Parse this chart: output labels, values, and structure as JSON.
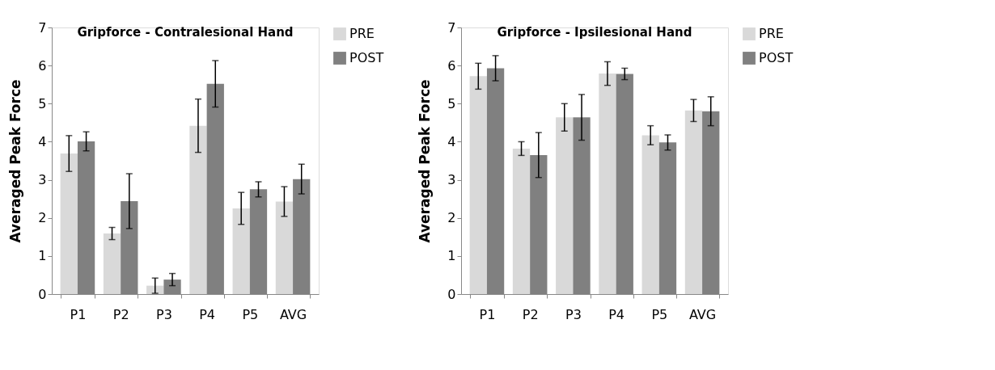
{
  "chart_data": [
    {
      "type": "bar",
      "title": "Gripforce - Contralesional Hand",
      "ylabel": "Averaged Peak Force",
      "categories": [
        "P1",
        "P2",
        "P3",
        "P4",
        "P5",
        "AVG"
      ],
      "ylim": [
        0,
        7
      ],
      "yticks": [
        0,
        1,
        2,
        3,
        4,
        5,
        6,
        7
      ],
      "grid": false,
      "legend": "right",
      "series": [
        {
          "name": "PRE",
          "color": "#d9d9d9",
          "values": [
            3.69,
            1.59,
            0.22,
            4.42,
            2.25,
            2.43
          ],
          "errors": [
            0.47,
            0.16,
            0.2,
            0.7,
            0.42,
            0.39
          ]
        },
        {
          "name": "POST",
          "color": "#808080",
          "values": [
            4.01,
            2.44,
            0.38,
            5.52,
            2.75,
            3.02
          ],
          "errors": [
            0.25,
            0.72,
            0.16,
            0.61,
            0.2,
            0.39
          ]
        }
      ]
    },
    {
      "type": "bar",
      "title": "Gripforce - Ipsilesional Hand",
      "ylabel": "Averaged Peak Force",
      "categories": [
        "P1",
        "P2",
        "P3",
        "P4",
        "P5",
        "AVG"
      ],
      "ylim": [
        0,
        7
      ],
      "yticks": [
        0,
        1,
        2,
        3,
        4,
        5,
        6,
        7
      ],
      "grid": false,
      "legend": "right",
      "series": [
        {
          "name": "PRE",
          "color": "#d9d9d9",
          "values": [
            5.72,
            3.82,
            4.64,
            5.79,
            4.17,
            4.82
          ],
          "errors": [
            0.34,
            0.18,
            0.36,
            0.31,
            0.25,
            0.29
          ]
        },
        {
          "name": "POST",
          "color": "#808080",
          "values": [
            5.93,
            3.65,
            4.64,
            5.78,
            3.98,
            4.8
          ],
          "errors": [
            0.33,
            0.59,
            0.6,
            0.15,
            0.2,
            0.38
          ]
        }
      ]
    }
  ]
}
